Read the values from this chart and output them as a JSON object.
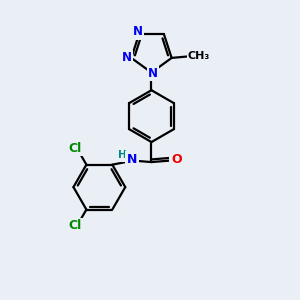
{
  "background_color": "#eaeff5",
  "bond_color": "#000000",
  "bond_width": 1.6,
  "atom_colors": {
    "N": "#0000ee",
    "O": "#ee0000",
    "Cl": "#008800",
    "H": "#008888",
    "C": "#000000"
  },
  "font_size": 8.5,
  "figsize": [
    3.0,
    3.0
  ],
  "dpi": 100,
  "xlim": [
    0,
    10
  ],
  "ylim": [
    0,
    10
  ]
}
